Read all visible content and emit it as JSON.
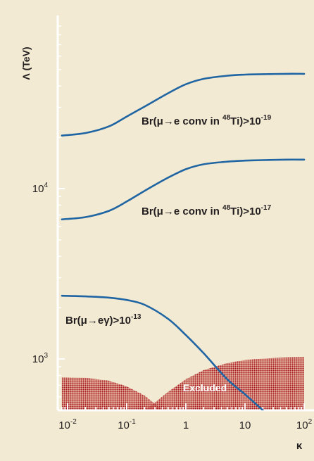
{
  "colors": {
    "background": "#f2ead2",
    "curve": "#2065a3",
    "excluded": "#b0161c",
    "text": "#231f20"
  },
  "chart_data": {
    "type": "line",
    "x_scale": "log",
    "y_scale": "log",
    "xlim": [
      0.008,
      100
    ],
    "ylim": [
      500,
      50000
    ],
    "ylabel": "Λ (TeV)",
    "xlabel": "κ",
    "grid": false,
    "x_ticks": [
      {
        "value": 0.01,
        "mantissa": "10",
        "exponent": "-2"
      },
      {
        "value": 0.1,
        "mantissa": "10",
        "exponent": "-1"
      },
      {
        "value": 1,
        "label": "1"
      },
      {
        "value": 10,
        "label": "10"
      },
      {
        "value": 100,
        "mantissa": "10",
        "exponent": "2"
      }
    ],
    "y_ticks": [
      {
        "value": 1000,
        "mantissa": "10",
        "exponent": "3"
      },
      {
        "value": 10000,
        "mantissa": "10",
        "exponent": "4"
      }
    ],
    "series": [
      {
        "x": [
          0.008,
          0.02,
          0.05,
          0.1,
          0.2,
          0.5,
          1,
          2,
          5,
          10,
          20,
          50,
          100
        ],
        "y": [
          20500,
          21200,
          23200,
          26500,
          30300,
          36300,
          41000,
          44100,
          46000,
          46700,
          47000,
          47200,
          47200
        ],
        "label_parts": [
          "Br(",
          "μ",
          "→",
          "e",
          " conv in ",
          "48",
          "Ti)>10",
          "-19"
        ]
      },
      {
        "x": [
          0.008,
          0.02,
          0.05,
          0.1,
          0.2,
          0.5,
          1,
          2,
          5,
          10,
          20,
          50,
          100
        ],
        "y": [
          6600,
          6800,
          7400,
          8400,
          9700,
          11600,
          13000,
          13900,
          14400,
          14600,
          14700,
          14800,
          14800
        ],
        "label_parts": [
          "Br(",
          "μ",
          "→",
          "e",
          " conv in ",
          "48",
          "Ti)>10",
          "-17"
        ]
      },
      {
        "x": [
          0.008,
          0.02,
          0.05,
          0.1,
          0.2,
          0.5,
          1,
          2,
          5,
          10,
          20
        ],
        "y": [
          2350,
          2330,
          2290,
          2220,
          2080,
          1720,
          1380,
          1080,
          760,
          620,
          500
        ],
        "label_parts": [
          "Br(",
          "μ",
          "→",
          "e",
          "γ)>10",
          "-13"
        ]
      }
    ],
    "excluded_regions": [
      {
        "x": [
          0.008,
          0.02,
          0.05,
          0.1,
          0.2,
          0.3,
          0.4
        ],
        "y": [
          780,
          775,
          745,
          690,
          610,
          545,
          500
        ]
      },
      {
        "x": [
          0.2,
          0.3,
          0.5,
          1,
          2,
          5,
          10,
          20,
          50,
          100
        ],
        "y": [
          500,
          555,
          640,
          760,
          860,
          945,
          985,
          1005,
          1020,
          1025
        ]
      }
    ],
    "excluded_label": "Excluded"
  }
}
